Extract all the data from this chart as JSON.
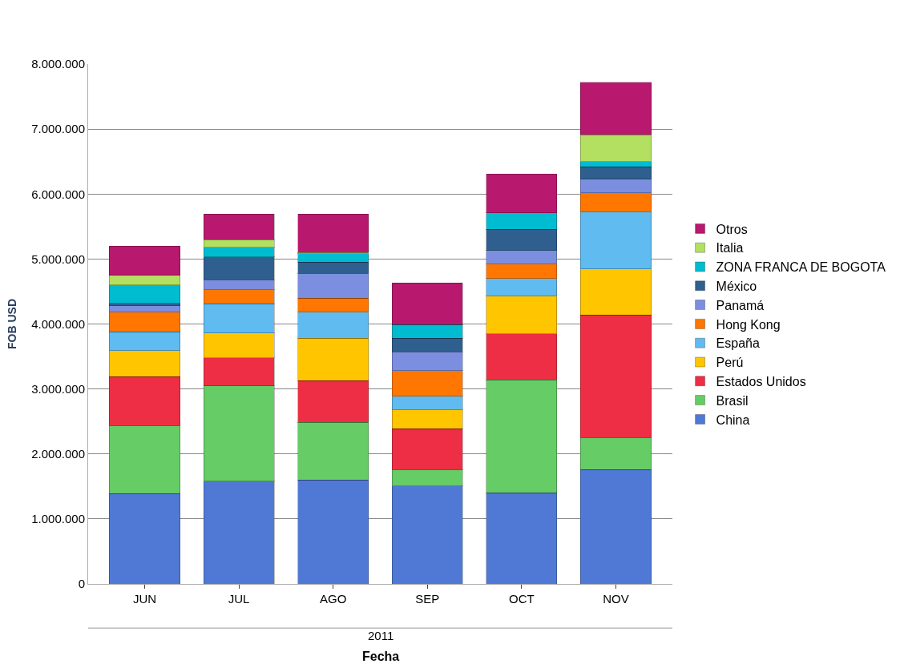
{
  "chart_data": {
    "type": "bar",
    "stacked": true,
    "xlabel": "Fecha",
    "ylabel": "FOB USD",
    "annotations": [
      "2011"
    ],
    "categories": [
      "JUN",
      "JUL",
      "AGO",
      "SEP",
      "OCT",
      "NOV"
    ],
    "series": [
      {
        "name": "China",
        "color": "#4f79d5",
        "values": [
          1390000,
          1580000,
          1600000,
          1510000,
          1400000,
          1760000
        ]
      },
      {
        "name": "Brasil",
        "color": "#66cc66",
        "values": [
          1050000,
          1470000,
          890000,
          250000,
          1740000,
          490000
        ]
      },
      {
        "name": "Estados Unidos",
        "color": "#ee2e44",
        "values": [
          750000,
          430000,
          640000,
          630000,
          710000,
          1890000
        ]
      },
      {
        "name": "Perú",
        "color": "#ffc600",
        "values": [
          400000,
          380000,
          650000,
          290000,
          580000,
          710000
        ]
      },
      {
        "name": "España",
        "color": "#5fbbf0",
        "values": [
          290000,
          450000,
          400000,
          210000,
          270000,
          870000
        ]
      },
      {
        "name": "Hong Kong",
        "color": "#ff7700",
        "values": [
          300000,
          220000,
          220000,
          390000,
          220000,
          300000
        ]
      },
      {
        "name": "Panamá",
        "color": "#7b8ee0",
        "values": [
          100000,
          150000,
          380000,
          290000,
          210000,
          210000
        ]
      },
      {
        "name": "México",
        "color": "#2e5f8f",
        "values": [
          40000,
          350000,
          170000,
          210000,
          330000,
          190000
        ]
      },
      {
        "name": "ZONA FRANCA DE BOGOTA",
        "color": "#00bcd0",
        "values": [
          280000,
          150000,
          130000,
          210000,
          250000,
          80000
        ]
      },
      {
        "name": "Italia",
        "color": "#b3e060",
        "values": [
          150000,
          120000,
          20000,
          0,
          0,
          410000
        ]
      },
      {
        "name": "Otros",
        "color": "#b8186e",
        "values": [
          450000,
          390000,
          590000,
          640000,
          600000,
          810000
        ]
      }
    ],
    "ylim": [
      0,
      8000000
    ],
    "yticks": [
      {
        "value": 0,
        "label": "0"
      },
      {
        "value": 1000000,
        "label": "1.000.000"
      },
      {
        "value": 2000000,
        "label": "2.000.000"
      },
      {
        "value": 3000000,
        "label": "3.000.000"
      },
      {
        "value": 4000000,
        "label": "4.000.000"
      },
      {
        "value": 5000000,
        "label": "5.000.000"
      },
      {
        "value": 6000000,
        "label": "6.000.000"
      },
      {
        "value": 7000000,
        "label": "7.000.000"
      },
      {
        "value": 8000000,
        "label": "8.000.000"
      }
    ],
    "grid": "y",
    "legend": "right"
  }
}
